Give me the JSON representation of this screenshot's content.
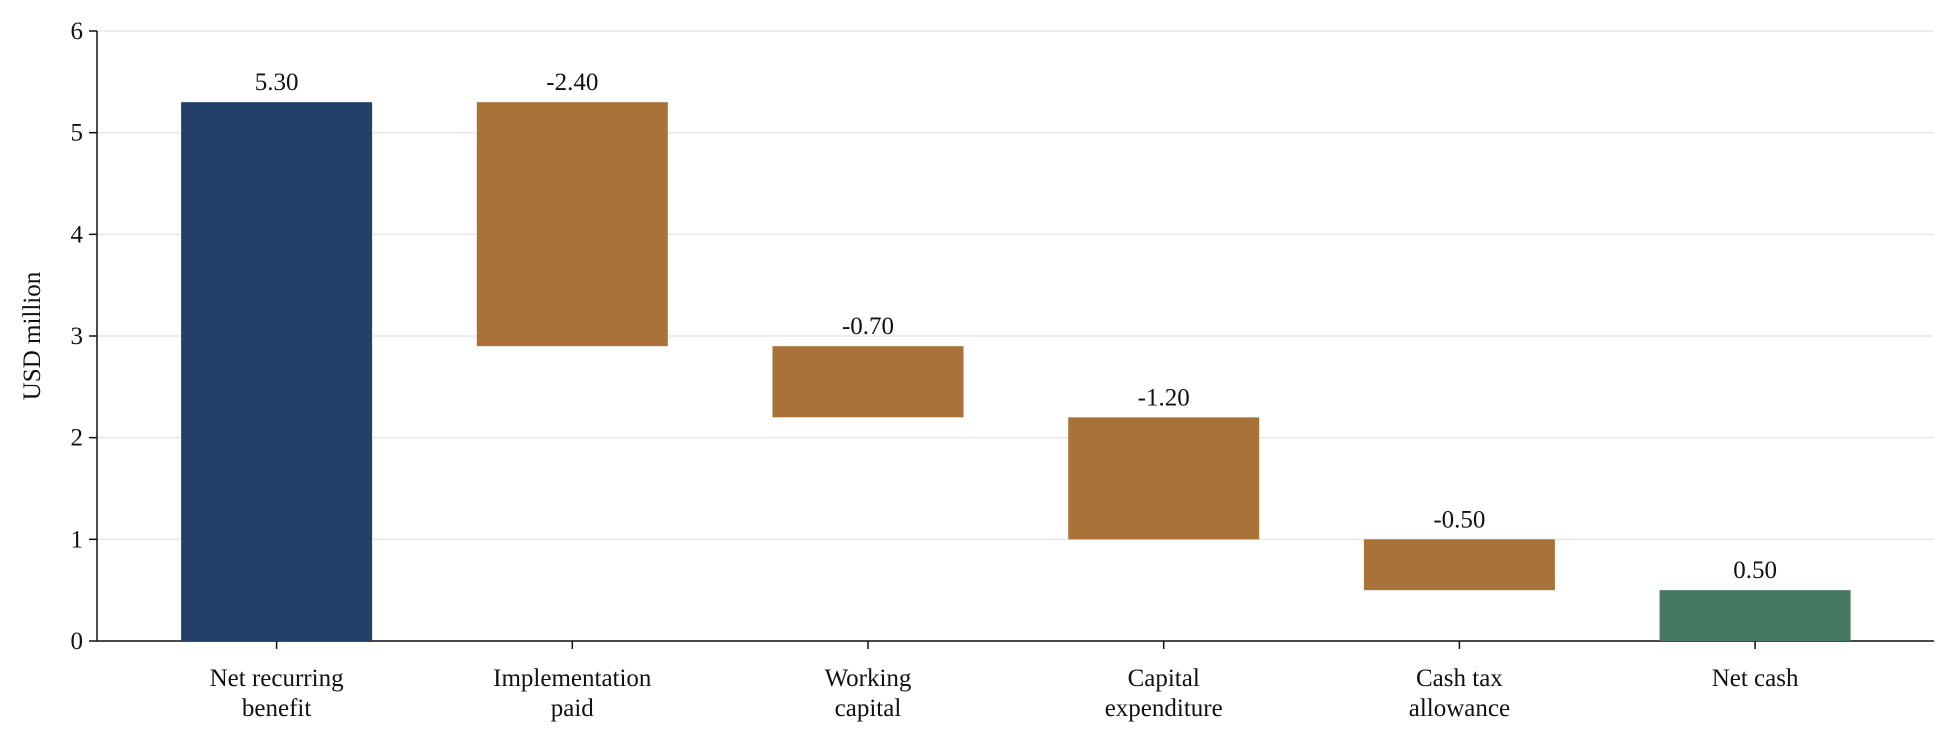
{
  "chart_data": {
    "type": "waterfall",
    "ylabel": "USD million",
    "categories": [
      "Net recurring\nbenefit",
      "Implementation\npaid",
      "Working\ncapital",
      "Capital\nexpenditure",
      "Cash tax\nallowance",
      "Net cash"
    ],
    "values": [
      5.3,
      -2.4,
      -0.7,
      -1.2,
      -0.5,
      0.5
    ],
    "value_labels": [
      "5.30",
      "-2.40",
      "-0.70",
      "-1.20",
      "-0.50",
      "0.50"
    ],
    "measure": [
      "absolute",
      "relative",
      "relative",
      "relative",
      "relative",
      "total"
    ],
    "colors": [
      "#22406a",
      "#a87239",
      "#a87239",
      "#a87239",
      "#a87239",
      "#467760"
    ],
    "ylim": [
      0,
      6
    ],
    "yticks": [
      0,
      1,
      2,
      3,
      4,
      5,
      6
    ],
    "grid": true
  }
}
